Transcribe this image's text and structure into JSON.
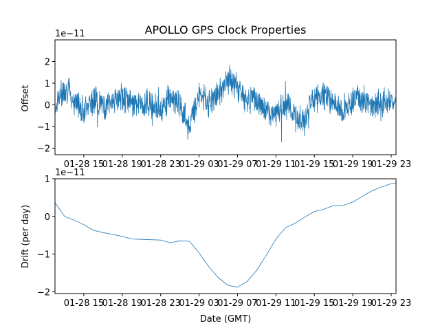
{
  "chart_data": [
    {
      "type": "line",
      "title": "APOLLO GPS Clock Properties",
      "xlabel": "",
      "ylabel": "Offset",
      "y_scale_label": "1e−11",
      "x_tick_labels": [
        "01-28 15",
        "01-28 19",
        "01-28 23",
        "01-29 03",
        "01-29 07",
        "01-29 11",
        "01-29 15",
        "01-29 19",
        "01-29 23"
      ],
      "y_tick_labels": [
        "−2",
        "−1",
        "0",
        "1",
        "2"
      ],
      "ylim": [
        -2.3,
        3.0
      ],
      "y_unit_scale": "1e-11",
      "series": [
        {
          "color": "#1f77b4",
          "x": [
            "01-28 12:00",
            "01-28 13:00",
            "01-28 14:00",
            "01-28 15:00",
            "01-28 16:00",
            "01-28 17:00",
            "01-28 18:00",
            "01-28 19:00",
            "01-28 20:00",
            "01-28 21:00",
            "01-28 22:00",
            "01-28 23:00",
            "01-29 00:00",
            "01-29 01:00",
            "01-29 02:00",
            "01-29 03:00",
            "01-29 04:00",
            "01-29 05:00",
            "01-29 06:00",
            "01-29 07:00",
            "01-29 08:00",
            "01-29 09:00",
            "01-29 10:00",
            "01-29 11:00",
            "01-29 12:00",
            "01-29 13:00",
            "01-29 14:00",
            "01-29 15:00",
            "01-29 16:00",
            "01-29 17:00",
            "01-29 18:00",
            "01-29 19:00",
            "01-29 20:00",
            "01-29 21:00",
            "01-29 22:00",
            "01-29 23:00"
          ],
          "values": [
            -0.1,
            0.8,
            0.2,
            -0.2,
            0.3,
            -0.1,
            0.2,
            0.4,
            0.1,
            0.0,
            0.1,
            -0.2,
            0.4,
            0.0,
            -1.0,
            0.5,
            0.1,
            0.5,
            1.2,
            0.8,
            0.2,
            0.3,
            -0.5,
            -0.3,
            0.1,
            -0.6,
            -0.8,
            0.3,
            0.5,
            0.0,
            -0.4,
            0.3,
            0.3,
            0.0,
            0.1,
            0.2
          ]
        }
      ]
    },
    {
      "type": "line",
      "title": "",
      "xlabel": "Date (GMT)",
      "ylabel": "Drift (per day)",
      "y_scale_label": "1e−11",
      "x_tick_labels": [
        "01-28 15",
        "01-28 19",
        "01-28 23",
        "01-29 03",
        "01-29 07",
        "01-29 11",
        "01-29 15",
        "01-29 19",
        "01-29 23"
      ],
      "y_tick_labels": [
        "−2",
        "−1",
        "0",
        "1"
      ],
      "ylim": [
        -2.05,
        1.0
      ],
      "y_unit_scale": "1e-11",
      "series": [
        {
          "color": "#1f77b4",
          "x": [
            "01-28 12:00",
            "01-28 13:00",
            "01-28 14:00",
            "01-28 15:00",
            "01-28 16:00",
            "01-28 17:00",
            "01-28 18:00",
            "01-28 19:00",
            "01-28 20:00",
            "01-28 21:00",
            "01-28 22:00",
            "01-28 23:00",
            "01-29 00:00",
            "01-29 01:00",
            "01-29 02:00",
            "01-29 03:00",
            "01-29 04:00",
            "01-29 05:00",
            "01-29 06:00",
            "01-29 07:00",
            "01-29 08:00",
            "01-29 09:00",
            "01-29 10:00",
            "01-29 11:00",
            "01-29 12:00",
            "01-29 13:00",
            "01-29 14:00",
            "01-29 15:00",
            "01-29 16:00",
            "01-29 17:00",
            "01-29 18:00",
            "01-29 19:00",
            "01-29 20:00",
            "01-29 21:00",
            "01-29 22:00",
            "01-29 23:00"
          ],
          "values": [
            0.37,
            0.0,
            -0.1,
            -0.22,
            -0.37,
            -0.43,
            -0.48,
            -0.53,
            -0.6,
            -0.61,
            -0.62,
            -0.63,
            -0.7,
            -0.65,
            -0.66,
            -0.97,
            -1.33,
            -1.63,
            -1.83,
            -1.88,
            -1.73,
            -1.43,
            -1.03,
            -0.6,
            -0.3,
            -0.18,
            -0.02,
            0.13,
            0.19,
            0.29,
            0.29,
            0.38,
            0.53,
            0.68,
            0.78,
            0.87
          ]
        }
      ]
    }
  ]
}
